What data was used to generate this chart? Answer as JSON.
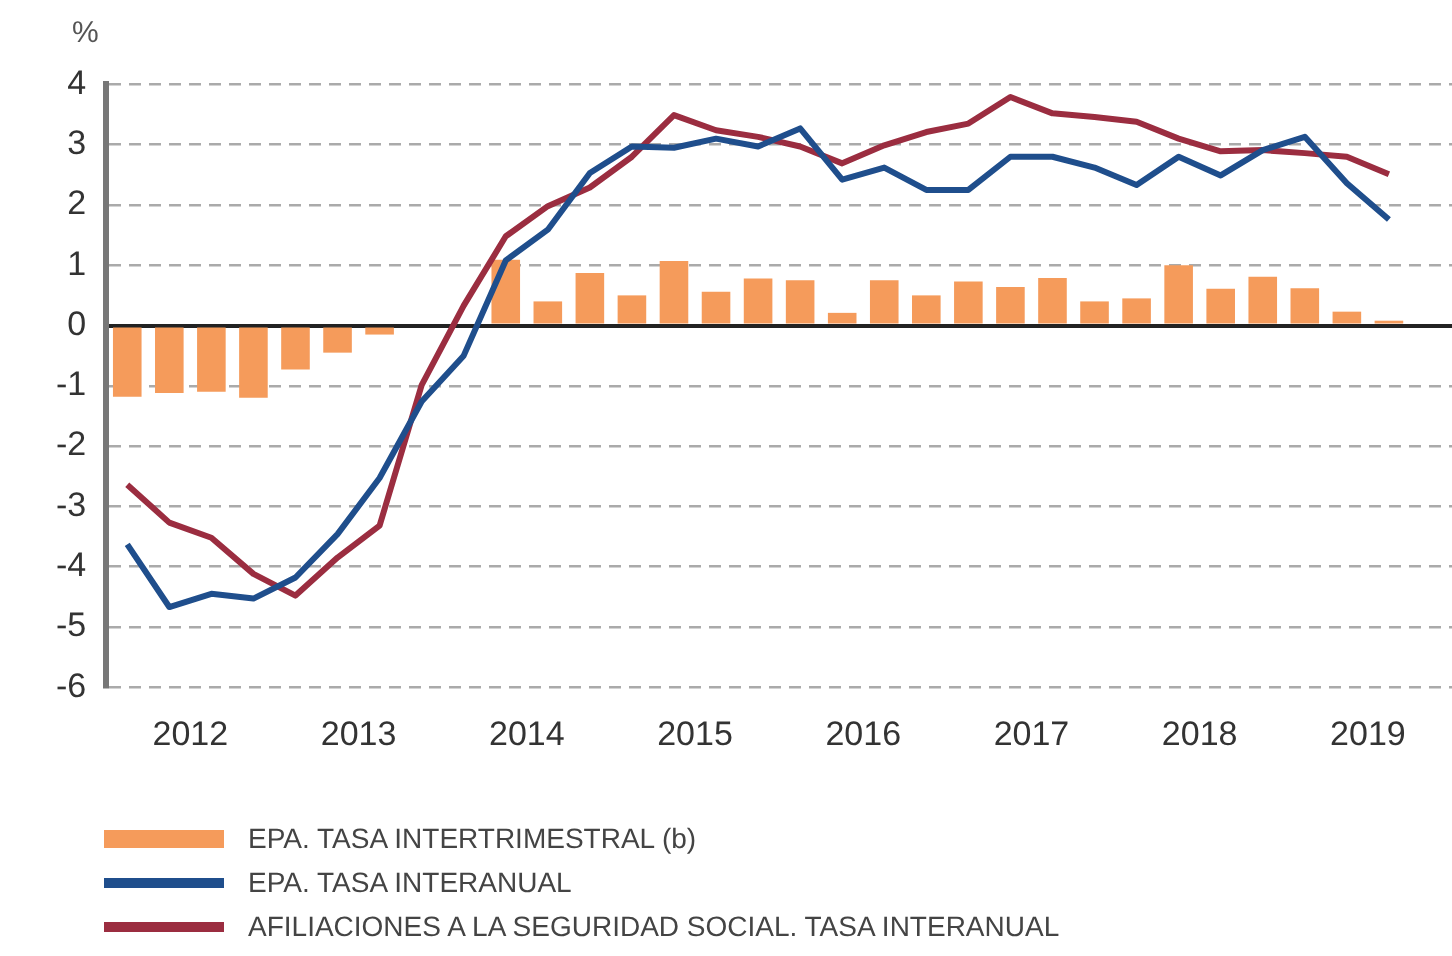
{
  "chart_data": {
    "type": "bar",
    "ylabel": "%",
    "x": [
      2012.125,
      2012.375,
      2012.625,
      2012.875,
      2013.125,
      2013.375,
      2013.625,
      2013.875,
      2014.125,
      2014.375,
      2014.625,
      2014.875,
      2015.125,
      2015.375,
      2015.625,
      2015.875,
      2016.125,
      2016.375,
      2016.625,
      2016.875,
      2017.125,
      2017.375,
      2017.625,
      2017.875,
      2018.125,
      2018.375,
      2018.625,
      2018.875,
      2019.125,
      2019.375,
      2019.625
    ],
    "series": [
      {
        "name": "EPA. TASA INTERTRIMESTRAL (b)",
        "color": "#f59b5b",
        "values": [
          -1.18,
          -1.12,
          -1.1,
          -1.2,
          -0.73,
          -0.45,
          -0.15,
          null,
          null,
          1.09,
          0.4,
          0.87,
          0.5,
          1.07,
          0.56,
          0.78,
          0.75,
          0.21,
          0.75,
          0.5,
          0.73,
          0.64,
          0.79,
          0.4,
          0.45,
          1.0,
          0.61,
          0.81,
          0.62,
          0.23,
          0.08
        ]
      },
      {
        "name": "EPA. TASA INTERANUAL",
        "type": "line",
        "color": "#1f4e8c",
        "values": [
          -3.63,
          -4.67,
          -4.45,
          -4.53,
          -4.18,
          -3.46,
          -2.53,
          -1.26,
          -0.5,
          1.08,
          1.59,
          2.53,
          2.97,
          2.95,
          3.1,
          2.97,
          3.27,
          2.42,
          2.62,
          2.25,
          2.25,
          2.8,
          2.8,
          2.62,
          2.33,
          2.8,
          2.49,
          2.91,
          3.13,
          2.36,
          1.76
        ]
      },
      {
        "name": "AFILIACIONES A LA SEGURIDAD SOCIAL. TASA INTERANUAL",
        "type": "line",
        "color": "#9b2d40",
        "values": [
          -2.64,
          -3.27,
          -3.52,
          -4.12,
          -4.48,
          -3.85,
          -3.32,
          -0.99,
          0.33,
          1.48,
          1.98,
          2.29,
          2.8,
          3.49,
          3.24,
          3.13,
          2.97,
          2.69,
          2.99,
          3.21,
          3.35,
          3.79,
          3.52,
          3.46,
          3.38,
          3.1,
          2.89,
          2.91,
          2.86,
          2.8,
          2.51
        ]
      }
    ],
    "xlim": [
      2012,
      2020
    ],
    "xticks": [
      {
        "value": 2012.5,
        "label": "2012"
      },
      {
        "value": 2013.5,
        "label": "2013"
      },
      {
        "value": 2014.5,
        "label": "2014"
      },
      {
        "value": 2015.5,
        "label": "2015"
      },
      {
        "value": 2016.5,
        "label": "2016"
      },
      {
        "value": 2017.5,
        "label": "2017"
      },
      {
        "value": 2018.5,
        "label": "2018"
      },
      {
        "value": 2019.5,
        "label": "2019"
      }
    ],
    "ylim": [
      -6,
      4
    ],
    "yticks": [
      -6,
      -5,
      -4,
      -3,
      -2,
      -1,
      0,
      1,
      2,
      3,
      4
    ],
    "grid": "y",
    "legend": "bottom",
    "marker": "none",
    "line_style": "solid"
  }
}
